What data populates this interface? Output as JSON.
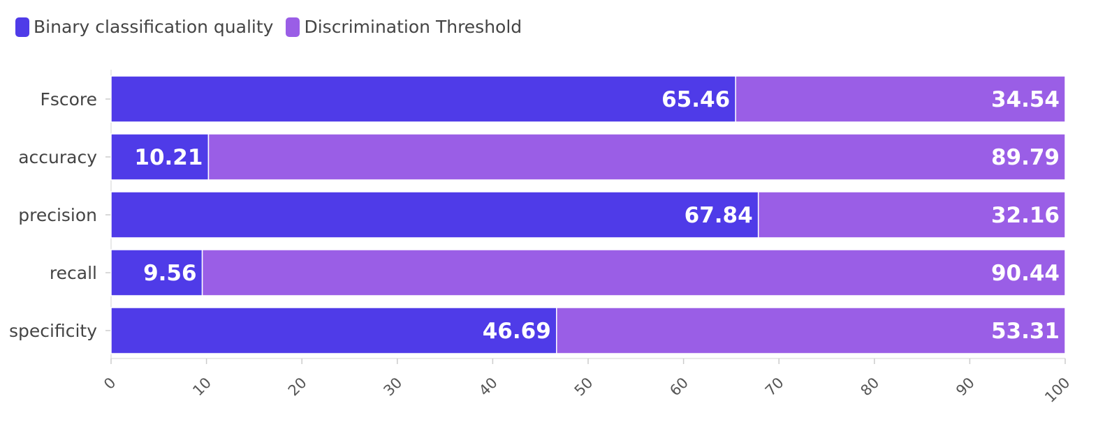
{
  "chart_data": {
    "type": "bar",
    "orientation": "horizontal",
    "stacked": true,
    "categories": [
      "Fscore",
      "accuracy",
      "precision",
      "recall",
      "specificity"
    ],
    "series": [
      {
        "name": "Binary classification quality",
        "color": "#4f3be8",
        "values": [
          65.46,
          10.21,
          67.84,
          9.56,
          46.69
        ]
      },
      {
        "name": "Discrimination Threshold",
        "color": "#9a5ee6",
        "values": [
          34.54,
          89.79,
          32.16,
          90.44,
          53.31
        ]
      }
    ],
    "xlim": [
      0,
      100
    ],
    "xticks": [
      0,
      10,
      20,
      30,
      40,
      50,
      60,
      70,
      80,
      90,
      100
    ],
    "legend_position": "top-left",
    "grid": false
  }
}
